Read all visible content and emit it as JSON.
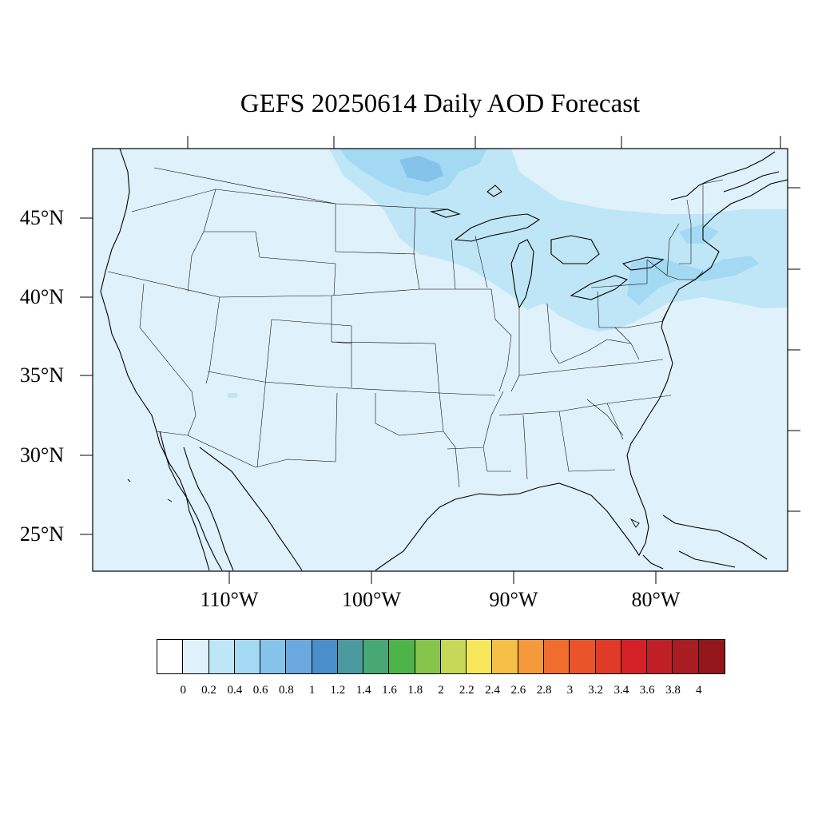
{
  "title": "GEFS 20250614 Daily AOD Forecast",
  "map": {
    "extent": {
      "lon_min": -119,
      "lon_max": -70,
      "lat_min": 22.7,
      "lat_max": 49.5
    },
    "background_aod_color": "#dff1fa",
    "lat_labels": [
      "45°N",
      "40°N",
      "35°N",
      "30°N",
      "25°N"
    ],
    "lat_values": [
      45,
      40,
      35,
      30,
      25
    ],
    "lon_labels": [
      "110°W",
      "100°W",
      "90°W",
      "80°W"
    ],
    "lon_values": [
      -110,
      -100,
      -90,
      -80
    ],
    "aod_regions": [
      {
        "name": "northeast-smoke-plume",
        "level": "0.2-0.4",
        "color": "#bfe6f7"
      },
      {
        "name": "canada-smoke-core",
        "level": "0.4-0.6",
        "color": "#9fd7f3"
      },
      {
        "name": "lake-superior-core",
        "level": "0.6-0.8",
        "color": "#86c3ea"
      },
      {
        "name": "arizona-speck",
        "level": "0.2-0.4",
        "color": "#bfe6f7"
      }
    ]
  },
  "colorbar": {
    "colors": [
      "#ffffff",
      "#dff1fa",
      "#bfe6f7",
      "#a3d9f3",
      "#86c3ea",
      "#6aa8dd",
      "#4a8ecc",
      "#4b9a9f",
      "#48a874",
      "#4cb449",
      "#86c44c",
      "#c6d857",
      "#f7e659",
      "#f6bf47",
      "#f59a3c",
      "#f06d2d",
      "#e9542a",
      "#e03b28",
      "#d42128",
      "#c01f26",
      "#a81c22",
      "#93161d"
    ],
    "labels": [
      "0",
      "0.2",
      "0.4",
      "0.6",
      "0.8",
      "1",
      "1.2",
      "1.4",
      "1.6",
      "1.8",
      "2",
      "2.2",
      "2.4",
      "2.6",
      "2.8",
      "3",
      "3.2",
      "3.4",
      "3.6",
      "3.8",
      "4"
    ]
  }
}
